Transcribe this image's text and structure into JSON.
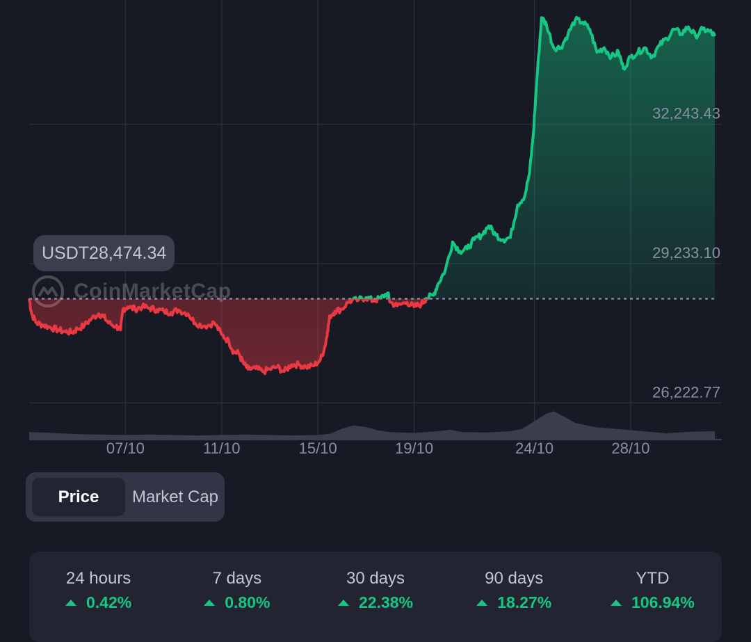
{
  "chart_data": {
    "type": "area",
    "currency_prefix": "USDT",
    "reference_price": "USDT28,474.34",
    "reference_value": 28474.34,
    "y_ticks": [
      "32,243.43",
      "29,233.10",
      "26,222.77"
    ],
    "y_tick_values": [
      32243.43,
      29233.1,
      26222.77
    ],
    "ylim": [
      25430,
      34780
    ],
    "x_tick_labels": [
      "07/10",
      "11/10",
      "15/10",
      "19/10",
      "24/10",
      "28/10"
    ],
    "x_tick_days": [
      7,
      11,
      15,
      19,
      24,
      28
    ],
    "x_range_days": [
      3,
      31.5
    ],
    "grid": true,
    "up_color": "#16c784",
    "down_color": "#ea3943",
    "price_points": [
      [
        3.0,
        28480
      ],
      [
        3.1,
        28150
      ],
      [
        3.3,
        27950
      ],
      [
        3.6,
        27900
      ],
      [
        3.9,
        27850
      ],
      [
        4.2,
        27800
      ],
      [
        4.5,
        27760
      ],
      [
        4.8,
        27750
      ],
      [
        5.0,
        27820
      ],
      [
        5.3,
        27900
      ],
      [
        5.6,
        28050
      ],
      [
        5.9,
        28150
      ],
      [
        6.1,
        28080
      ],
      [
        6.3,
        27950
      ],
      [
        6.6,
        27880
      ],
      [
        6.8,
        27800
      ],
      [
        6.9,
        28250
      ],
      [
        7.1,
        28300
      ],
      [
        7.4,
        28250
      ],
      [
        7.7,
        28300
      ],
      [
        8.0,
        28270
      ],
      [
        8.3,
        28240
      ],
      [
        8.6,
        28200
      ],
      [
        8.9,
        28180
      ],
      [
        9.2,
        28230
      ],
      [
        9.6,
        28150
      ],
      [
        9.9,
        27950
      ],
      [
        10.3,
        27880
      ],
      [
        10.7,
        27950
      ],
      [
        11.0,
        27700
      ],
      [
        11.3,
        27550
      ],
      [
        11.5,
        27320
      ],
      [
        11.7,
        27300
      ],
      [
        11.9,
        27080
      ],
      [
        12.1,
        26950
      ],
      [
        12.4,
        26970
      ],
      [
        12.7,
        26900
      ],
      [
        13.0,
        26950
      ],
      [
        13.3,
        27000
      ],
      [
        13.6,
        26900
      ],
      [
        13.9,
        27050
      ],
      [
        14.2,
        27050
      ],
      [
        14.5,
        27000
      ],
      [
        14.8,
        27020
      ],
      [
        15.1,
        27150
      ],
      [
        15.3,
        27450
      ],
      [
        15.4,
        27780
      ],
      [
        15.5,
        28100
      ],
      [
        15.7,
        28200
      ],
      [
        16.0,
        28250
      ],
      [
        16.3,
        28420
      ],
      [
        16.7,
        28450
      ],
      [
        17.0,
        28500
      ],
      [
        17.3,
        28430
      ],
      [
        17.6,
        28480
      ],
      [
        17.9,
        28600
      ],
      [
        18.0,
        28400
      ],
      [
        18.3,
        28320
      ],
      [
        18.7,
        28400
      ],
      [
        19.0,
        28300
      ],
      [
        19.3,
        28360
      ],
      [
        19.5,
        28480
      ],
      [
        19.8,
        28550
      ],
      [
        20.0,
        28800
      ],
      [
        20.3,
        29100
      ],
      [
        20.6,
        29700
      ],
      [
        20.9,
        29500
      ],
      [
        21.2,
        29550
      ],
      [
        21.5,
        29750
      ],
      [
        21.8,
        29850
      ],
      [
        22.1,
        30050
      ],
      [
        22.4,
        29850
      ],
      [
        22.7,
        29750
      ],
      [
        23.0,
        29800
      ],
      [
        23.3,
        30500
      ],
      [
        23.6,
        30700
      ],
      [
        23.8,
        31200
      ],
      [
        23.95,
        32000
      ],
      [
        24.1,
        33200
      ],
      [
        24.3,
        34550
      ],
      [
        24.5,
        34400
      ],
      [
        24.8,
        33900
      ],
      [
        25.1,
        33900
      ],
      [
        25.4,
        34200
      ],
      [
        25.7,
        34500
      ],
      [
        26.0,
        34450
      ],
      [
        26.3,
        34300
      ],
      [
        26.6,
        33800
      ],
      [
        26.9,
        33900
      ],
      [
        27.2,
        33700
      ],
      [
        27.5,
        33800
      ],
      [
        27.7,
        33450
      ],
      [
        28.0,
        33700
      ],
      [
        28.3,
        33800
      ],
      [
        28.6,
        33900
      ],
      [
        28.9,
        33700
      ],
      [
        29.2,
        33950
      ],
      [
        29.5,
        34100
      ],
      [
        29.8,
        34300
      ],
      [
        30.1,
        34200
      ],
      [
        30.4,
        34350
      ],
      [
        30.7,
        34150
      ],
      [
        31.0,
        34300
      ],
      [
        31.3,
        34250
      ],
      [
        31.5,
        34150
      ]
    ],
    "volume_points": [
      [
        3,
        0.18
      ],
      [
        4,
        0.16
      ],
      [
        5,
        0.13
      ],
      [
        6,
        0.12
      ],
      [
        7,
        0.11
      ],
      [
        8,
        0.12
      ],
      [
        9,
        0.11
      ],
      [
        10,
        0.1
      ],
      [
        11,
        0.11
      ],
      [
        12,
        0.12
      ],
      [
        13,
        0.11
      ],
      [
        14,
        0.1
      ],
      [
        15,
        0.11
      ],
      [
        15.5,
        0.14
      ],
      [
        16,
        0.26
      ],
      [
        16.5,
        0.34
      ],
      [
        17,
        0.3
      ],
      [
        17.5,
        0.22
      ],
      [
        18,
        0.18
      ],
      [
        19,
        0.16
      ],
      [
        20,
        0.2
      ],
      [
        20.5,
        0.24
      ],
      [
        21,
        0.18
      ],
      [
        22,
        0.17
      ],
      [
        23,
        0.2
      ],
      [
        23.5,
        0.26
      ],
      [
        24,
        0.44
      ],
      [
        24.5,
        0.62
      ],
      [
        24.8,
        0.68
      ],
      [
        25.2,
        0.56
      ],
      [
        25.7,
        0.4
      ],
      [
        26.5,
        0.3
      ],
      [
        27.5,
        0.25
      ],
      [
        28.5,
        0.2
      ],
      [
        29.5,
        0.15
      ],
      [
        30.5,
        0.19
      ],
      [
        31.5,
        0.2
      ]
    ]
  },
  "watermark": {
    "brand": "CoinMarketCap",
    "icon": "coinmarketcap-logo-icon"
  },
  "toggle": {
    "price_label": "Price",
    "market_cap_label": "Market Cap",
    "active": "Price"
  },
  "performance": [
    {
      "label": "24 hours",
      "value": "0.42%"
    },
    {
      "label": "7 days",
      "value": "0.80%"
    },
    {
      "label": "30 days",
      "value": "22.38%"
    },
    {
      "label": "90 days",
      "value": "18.27%"
    },
    {
      "label": "YTD",
      "value": "106.94%"
    }
  ],
  "colors": {
    "background": "#171924",
    "panel": "#222531",
    "positive": "#16c784",
    "negative": "#ea3943"
  }
}
